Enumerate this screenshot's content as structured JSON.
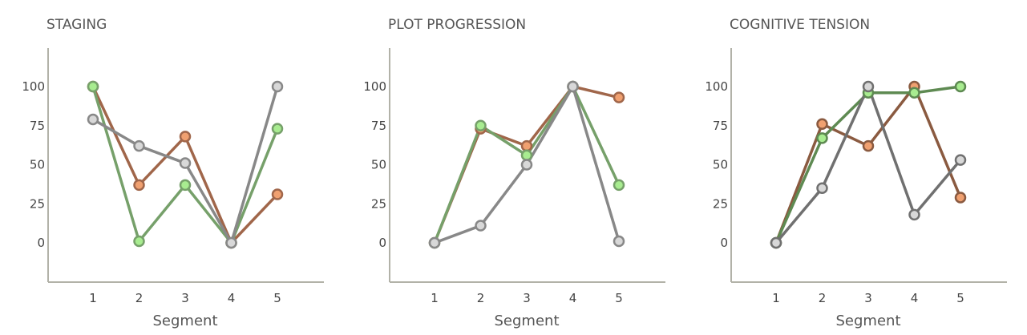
{
  "chart_data": [
    {
      "type": "line",
      "title": "STAGING",
      "xlabel": "Segment",
      "ylabel": "",
      "x": [
        1,
        2,
        3,
        4,
        5
      ],
      "ylim": [
        -25,
        125
      ],
      "yticks": [
        0,
        25,
        50,
        75,
        100
      ],
      "grid": false,
      "series": [
        {
          "color": "#a0664a",
          "marker_fill": "#f0a070",
          "values": [
            100,
            37,
            68,
            0,
            31
          ]
        },
        {
          "color": "#76a06a",
          "marker_fill": "#a8ec90",
          "values": [
            100,
            1,
            37,
            0,
            73
          ]
        },
        {
          "color": "#888888",
          "marker_fill": "#d8d8d8",
          "values": [
            79,
            62,
            51,
            0,
            100
          ]
        }
      ]
    },
    {
      "type": "line",
      "title": "PLOT PROGRESSION",
      "xlabel": "Segment",
      "ylabel": "",
      "x": [
        1,
        2,
        3,
        4,
        5
      ],
      "ylim": [
        -25,
        125
      ],
      "yticks": [
        0,
        25,
        50,
        75,
        100
      ],
      "grid": false,
      "series": [
        {
          "color": "#a0664a",
          "marker_fill": "#f0a070",
          "values": [
            0,
            73,
            62,
            100,
            93
          ]
        },
        {
          "color": "#76a06a",
          "marker_fill": "#a8ec90",
          "values": [
            0,
            75,
            56,
            100,
            37
          ]
        },
        {
          "color": "#888888",
          "marker_fill": "#d8d8d8",
          "values": [
            0,
            11,
            50,
            100,
            1
          ]
        }
      ]
    },
    {
      "type": "line",
      "title": "COGNITIVE TENSION",
      "xlabel": "Segment",
      "ylabel": "",
      "x": [
        1,
        2,
        3,
        4,
        5
      ],
      "ylim": [
        -25,
        125
      ],
      "yticks": [
        0,
        25,
        50,
        75,
        100
      ],
      "grid": false,
      "series": [
        {
          "color": "#8a5a40",
          "marker_fill": "#f0a070",
          "values": [
            0,
            76,
            62,
            100,
            29
          ]
        },
        {
          "color": "#5e8a52",
          "marker_fill": "#a8ec90",
          "values": [
            0,
            67,
            96,
            96,
            100
          ]
        },
        {
          "color": "#707070",
          "marker_fill": "#d8d8d8",
          "values": [
            0,
            35,
            100,
            18,
            53
          ]
        }
      ]
    }
  ]
}
